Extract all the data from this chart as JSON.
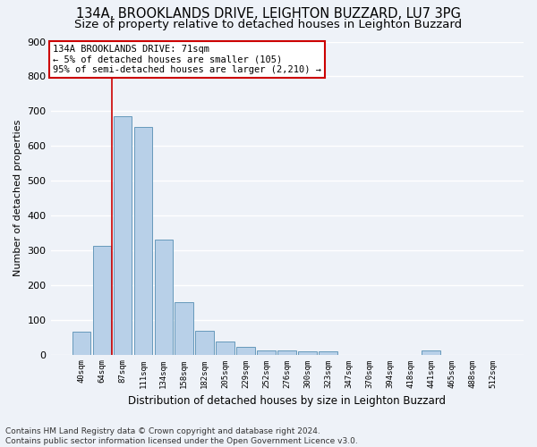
{
  "title1": "134A, BROOKLANDS DRIVE, LEIGHTON BUZZARD, LU7 3PG",
  "title2": "Size of property relative to detached houses in Leighton Buzzard",
  "xlabel": "Distribution of detached houses by size in Leighton Buzzard",
  "ylabel": "Number of detached properties",
  "footnote": "Contains HM Land Registry data © Crown copyright and database right 2024.\nContains public sector information licensed under the Open Government Licence v3.0.",
  "annotation_line1": "134A BROOKLANDS DRIVE: 71sqm",
  "annotation_line2": "← 5% of detached houses are smaller (105)",
  "annotation_line3": "95% of semi-detached houses are larger (2,210) →",
  "bar_color": "#b8d0e8",
  "bar_edge_color": "#6699bb",
  "vline_color": "#cc0000",
  "vline_x": 1.5,
  "categories": [
    "40sqm",
    "64sqm",
    "87sqm",
    "111sqm",
    "134sqm",
    "158sqm",
    "182sqm",
    "205sqm",
    "229sqm",
    "252sqm",
    "276sqm",
    "300sqm",
    "323sqm",
    "347sqm",
    "370sqm",
    "394sqm",
    "418sqm",
    "441sqm",
    "465sqm",
    "488sqm",
    "512sqm"
  ],
  "values": [
    65,
    312,
    685,
    655,
    330,
    150,
    68,
    37,
    23,
    12,
    12,
    10,
    10,
    0,
    0,
    0,
    0,
    12,
    0,
    0,
    0
  ],
  "ylim": [
    0,
    900
  ],
  "yticks": [
    0,
    100,
    200,
    300,
    400,
    500,
    600,
    700,
    800,
    900
  ],
  "bg_color": "#eef2f8",
  "grid_color": "#ffffff",
  "annotation_box_color": "#cc0000",
  "title1_fontsize": 10.5,
  "title2_fontsize": 9.5,
  "footnote_fontsize": 6.5,
  "ylabel_fontsize": 8,
  "xlabel_fontsize": 8.5
}
